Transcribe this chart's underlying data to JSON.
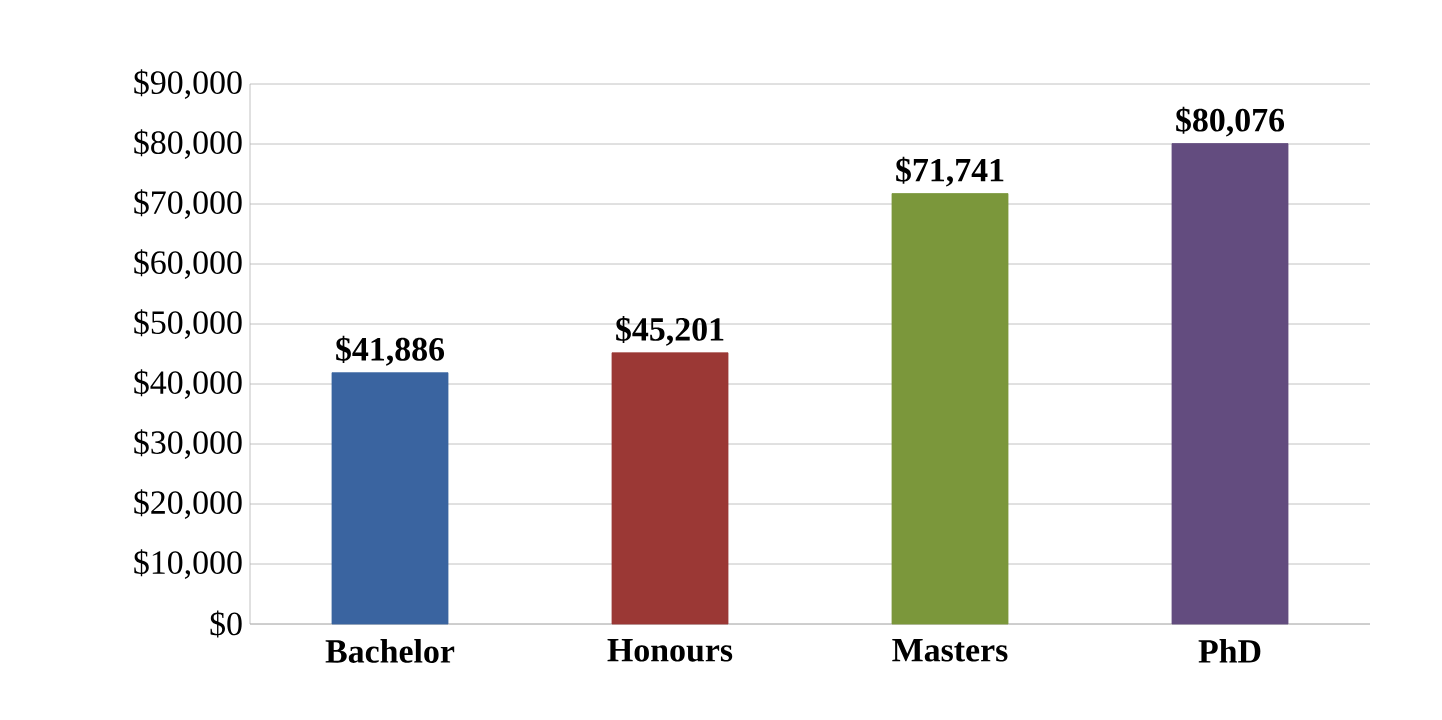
{
  "chart_data": {
    "type": "bar",
    "categories": [
      "Bachelor",
      "Honours",
      "Masters",
      "PhD"
    ],
    "values": [
      41886,
      45201,
      71741,
      80076
    ],
    "colors": [
      "#3a64a0",
      "#9b3835",
      "#7b973b",
      "#634c7f"
    ],
    "value_labels": [
      "$41,886",
      "$45,201",
      "$71,741",
      "$80,076"
    ],
    "ylim": [
      0,
      90000
    ],
    "yticks": [
      {
        "value": 0,
        "label": "$0"
      },
      {
        "value": 10000,
        "label": "$10,000"
      },
      {
        "value": 20000,
        "label": "$20,000"
      },
      {
        "value": 30000,
        "label": "$30,000"
      },
      {
        "value": 40000,
        "label": "$40,000"
      },
      {
        "value": 50000,
        "label": "$50,000"
      },
      {
        "value": 60000,
        "label": "$60,000"
      },
      {
        "value": 70000,
        "label": "$70,000"
      },
      {
        "value": 80000,
        "label": "$80,000"
      },
      {
        "value": 90000,
        "label": "$90,000"
      }
    ],
    "grid": "y"
  }
}
